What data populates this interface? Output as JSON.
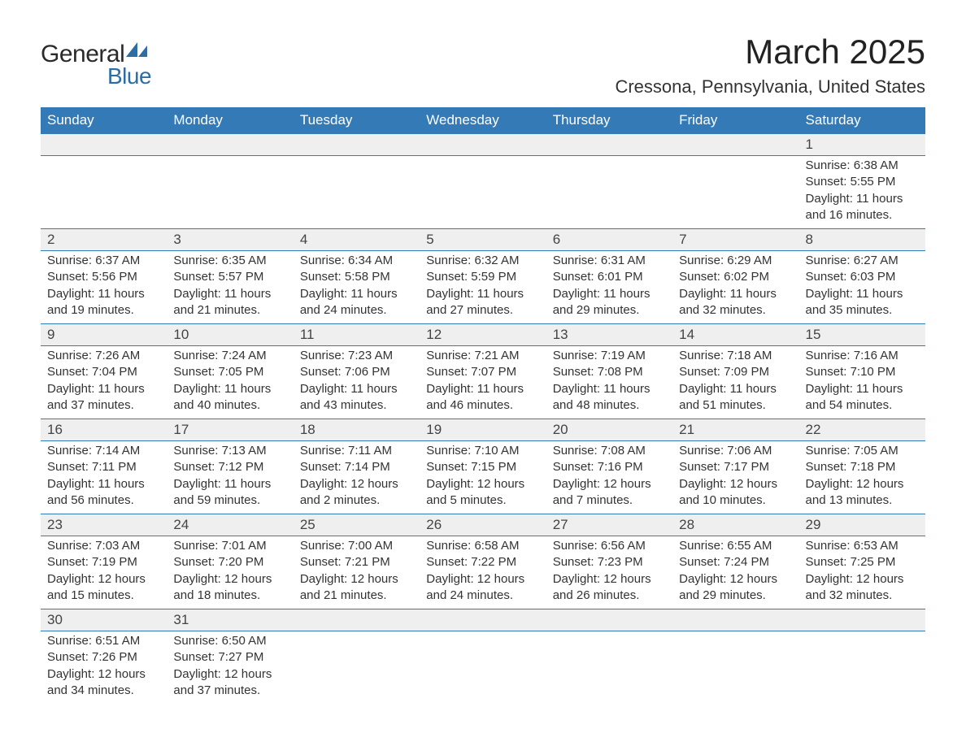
{
  "logo": {
    "text1": "General",
    "text2": "Blue",
    "shape_color": "#2e6da4"
  },
  "title": "March 2025",
  "location": "Cressona, Pennsylvania, United States",
  "colors": {
    "header_bg": "#337ab7",
    "header_text": "#ffffff",
    "daynum_bg": "#efefef",
    "row_border": "#337ab7",
    "body_text": "#333333"
  },
  "day_headers": [
    "Sunday",
    "Monday",
    "Tuesday",
    "Wednesday",
    "Thursday",
    "Friday",
    "Saturday"
  ],
  "weeks": [
    [
      null,
      null,
      null,
      null,
      null,
      null,
      {
        "n": "1",
        "sunrise": "6:38 AM",
        "sunset": "5:55 PM",
        "daylight": "11 hours and 16 minutes."
      }
    ],
    [
      {
        "n": "2",
        "sunrise": "6:37 AM",
        "sunset": "5:56 PM",
        "daylight": "11 hours and 19 minutes."
      },
      {
        "n": "3",
        "sunrise": "6:35 AM",
        "sunset": "5:57 PM",
        "daylight": "11 hours and 21 minutes."
      },
      {
        "n": "4",
        "sunrise": "6:34 AM",
        "sunset": "5:58 PM",
        "daylight": "11 hours and 24 minutes."
      },
      {
        "n": "5",
        "sunrise": "6:32 AM",
        "sunset": "5:59 PM",
        "daylight": "11 hours and 27 minutes."
      },
      {
        "n": "6",
        "sunrise": "6:31 AM",
        "sunset": "6:01 PM",
        "daylight": "11 hours and 29 minutes."
      },
      {
        "n": "7",
        "sunrise": "6:29 AM",
        "sunset": "6:02 PM",
        "daylight": "11 hours and 32 minutes."
      },
      {
        "n": "8",
        "sunrise": "6:27 AM",
        "sunset": "6:03 PM",
        "daylight": "11 hours and 35 minutes."
      }
    ],
    [
      {
        "n": "9",
        "sunrise": "7:26 AM",
        "sunset": "7:04 PM",
        "daylight": "11 hours and 37 minutes."
      },
      {
        "n": "10",
        "sunrise": "7:24 AM",
        "sunset": "7:05 PM",
        "daylight": "11 hours and 40 minutes."
      },
      {
        "n": "11",
        "sunrise": "7:23 AM",
        "sunset": "7:06 PM",
        "daylight": "11 hours and 43 minutes."
      },
      {
        "n": "12",
        "sunrise": "7:21 AM",
        "sunset": "7:07 PM",
        "daylight": "11 hours and 46 minutes."
      },
      {
        "n": "13",
        "sunrise": "7:19 AM",
        "sunset": "7:08 PM",
        "daylight": "11 hours and 48 minutes."
      },
      {
        "n": "14",
        "sunrise": "7:18 AM",
        "sunset": "7:09 PM",
        "daylight": "11 hours and 51 minutes."
      },
      {
        "n": "15",
        "sunrise": "7:16 AM",
        "sunset": "7:10 PM",
        "daylight": "11 hours and 54 minutes."
      }
    ],
    [
      {
        "n": "16",
        "sunrise": "7:14 AM",
        "sunset": "7:11 PM",
        "daylight": "11 hours and 56 minutes."
      },
      {
        "n": "17",
        "sunrise": "7:13 AM",
        "sunset": "7:12 PM",
        "daylight": "11 hours and 59 minutes."
      },
      {
        "n": "18",
        "sunrise": "7:11 AM",
        "sunset": "7:14 PM",
        "daylight": "12 hours and 2 minutes."
      },
      {
        "n": "19",
        "sunrise": "7:10 AM",
        "sunset": "7:15 PM",
        "daylight": "12 hours and 5 minutes."
      },
      {
        "n": "20",
        "sunrise": "7:08 AM",
        "sunset": "7:16 PM",
        "daylight": "12 hours and 7 minutes."
      },
      {
        "n": "21",
        "sunrise": "7:06 AM",
        "sunset": "7:17 PM",
        "daylight": "12 hours and 10 minutes."
      },
      {
        "n": "22",
        "sunrise": "7:05 AM",
        "sunset": "7:18 PM",
        "daylight": "12 hours and 13 minutes."
      }
    ],
    [
      {
        "n": "23",
        "sunrise": "7:03 AM",
        "sunset": "7:19 PM",
        "daylight": "12 hours and 15 minutes."
      },
      {
        "n": "24",
        "sunrise": "7:01 AM",
        "sunset": "7:20 PM",
        "daylight": "12 hours and 18 minutes."
      },
      {
        "n": "25",
        "sunrise": "7:00 AM",
        "sunset": "7:21 PM",
        "daylight": "12 hours and 21 minutes."
      },
      {
        "n": "26",
        "sunrise": "6:58 AM",
        "sunset": "7:22 PM",
        "daylight": "12 hours and 24 minutes."
      },
      {
        "n": "27",
        "sunrise": "6:56 AM",
        "sunset": "7:23 PM",
        "daylight": "12 hours and 26 minutes."
      },
      {
        "n": "28",
        "sunrise": "6:55 AM",
        "sunset": "7:24 PM",
        "daylight": "12 hours and 29 minutes."
      },
      {
        "n": "29",
        "sunrise": "6:53 AM",
        "sunset": "7:25 PM",
        "daylight": "12 hours and 32 minutes."
      }
    ],
    [
      {
        "n": "30",
        "sunrise": "6:51 AM",
        "sunset": "7:26 PM",
        "daylight": "12 hours and 34 minutes."
      },
      {
        "n": "31",
        "sunrise": "6:50 AM",
        "sunset": "7:27 PM",
        "daylight": "12 hours and 37 minutes."
      },
      null,
      null,
      null,
      null,
      null
    ]
  ],
  "labels": {
    "sunrise": "Sunrise:",
    "sunset": "Sunset:",
    "daylight": "Daylight:"
  }
}
